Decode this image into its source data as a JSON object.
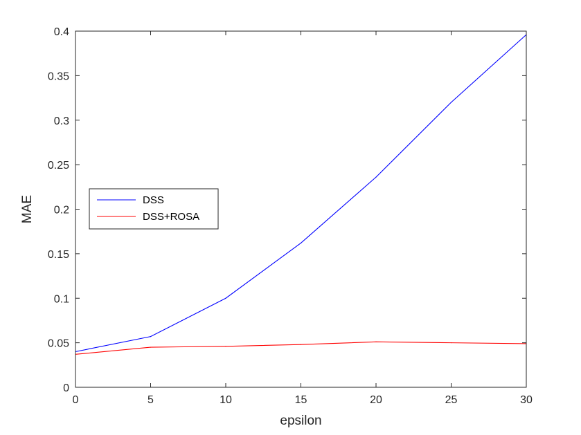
{
  "chart_data": {
    "type": "line",
    "title": "",
    "xlabel": "epsilon",
    "ylabel": "MAE",
    "xlim": [
      0,
      30
    ],
    "ylim": [
      0,
      0.4
    ],
    "xticks": [
      0,
      5,
      10,
      15,
      20,
      25,
      30
    ],
    "yticks": [
      0,
      0.05,
      0.1,
      0.15,
      0.2,
      0.25,
      0.3,
      0.35,
      0.4
    ],
    "xtick_labels": [
      "0",
      "5",
      "10",
      "15",
      "20",
      "25",
      "30"
    ],
    "ytick_labels": [
      "0",
      "0.05",
      "0.1",
      "0.15",
      "0.2",
      "0.25",
      "0.3",
      "0.35",
      "0.4"
    ],
    "grid": false,
    "legend": "center-left",
    "x": [
      0,
      5,
      10,
      15,
      20,
      25,
      30
    ],
    "series": [
      {
        "name": "DSS",
        "color": "#0000ff",
        "values": [
          0.04,
          0.057,
          0.1,
          0.162,
          0.236,
          0.32,
          0.396
        ]
      },
      {
        "name": "DSS+ROSA",
        "color": "#ff0000",
        "values": [
          0.037,
          0.045,
          0.046,
          0.048,
          0.051,
          0.05,
          0.049
        ]
      }
    ]
  }
}
